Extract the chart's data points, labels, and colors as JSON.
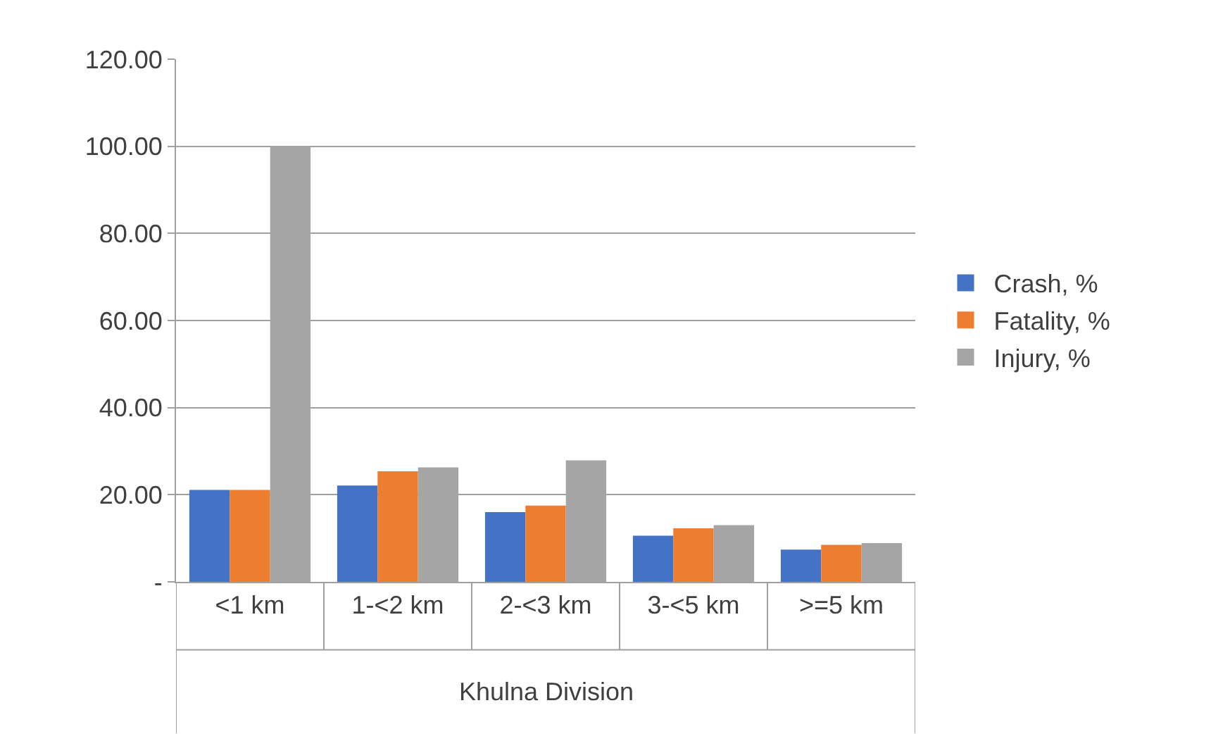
{
  "chart_data": {
    "type": "bar",
    "xlabel": "Khulna Division",
    "categories": [
      "<1 km",
      "1-<2 km",
      "2-<3 km",
      "3-<5 km",
      ">=5 km"
    ],
    "series": [
      {
        "name": "Crash, %",
        "color": "#4472c4",
        "values": [
          21.1,
          22.1,
          16.0,
          10.6,
          7.4
        ]
      },
      {
        "name": "Fatality, %",
        "color": "#ed7d31",
        "values": [
          21.1,
          25.4,
          17.5,
          12.3,
          8.5
        ]
      },
      {
        "name": "Injury, %",
        "color": "#a5a5a5",
        "values": [
          100.0,
          26.3,
          27.9,
          13.0,
          8.9
        ]
      }
    ],
    "ylim": [
      0,
      120
    ],
    "yticks": [
      {
        "value": 0,
        "label": "-"
      },
      {
        "value": 20,
        "label": "20.00"
      },
      {
        "value": 40,
        "label": "40.00"
      },
      {
        "value": 60,
        "label": "60.00"
      },
      {
        "value": 80,
        "label": "80.00"
      },
      {
        "value": 100,
        "label": "100.00"
      },
      {
        "value": 120,
        "label": "120.00"
      }
    ],
    "grid": "y",
    "legend": "right"
  }
}
